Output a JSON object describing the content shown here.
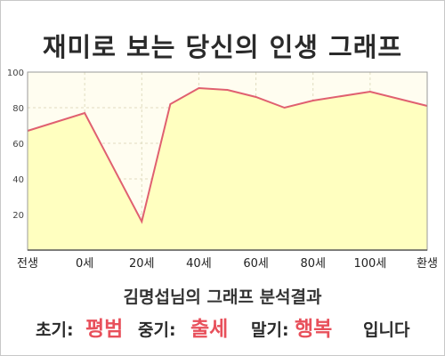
{
  "title": "재미로 보는 당신의 인생 그래프",
  "subtitle": "김명섭님의 그래프 분석결과",
  "result": {
    "early_label": "초기:",
    "early_value": "평범",
    "middle_label": "중기:",
    "middle_value": "출세",
    "late_label": "말기:",
    "late_value": "행복",
    "ending": "입니다"
  },
  "colors": {
    "line": "#e06070",
    "fill": "#ffffc0",
    "accent_text": "#e8505b"
  },
  "chart_data": {
    "type": "area",
    "x_tick_labels": [
      "전생",
      "0세",
      "20세",
      "40세",
      "60세",
      "80세",
      "100세",
      "환생"
    ],
    "y_ticks": [
      20,
      40,
      60,
      80,
      100
    ],
    "ylim": [
      0,
      100
    ],
    "grid": true,
    "points": [
      {
        "x": "전생",
        "y": 67
      },
      {
        "x": "0세",
        "y": 77
      },
      {
        "x": "20세",
        "y": 16
      },
      {
        "x": "30세",
        "y": 82
      },
      {
        "x": "40세",
        "y": 91
      },
      {
        "x": "50세",
        "y": 90
      },
      {
        "x": "60세",
        "y": 86
      },
      {
        "x": "70세",
        "y": 80
      },
      {
        "x": "80세",
        "y": 84
      },
      {
        "x": "100세",
        "y": 89
      },
      {
        "x": "환생",
        "y": 81
      }
    ]
  }
}
